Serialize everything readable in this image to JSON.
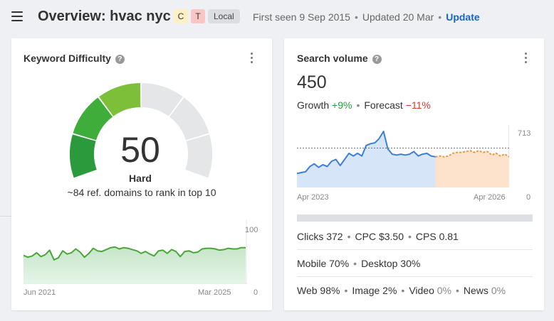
{
  "header": {
    "title": "Overview: hvac nyc",
    "badge_c": "C",
    "badge_t": "T",
    "badge_local": "Local",
    "first_seen": "First seen 9 Sep 2015",
    "updated": "Updated 20 Mar",
    "update_link": "Update"
  },
  "keyword_difficulty": {
    "title": "Keyword Difficulty",
    "value": "50",
    "label": "Hard",
    "subtitle": "~84 ref. domains to rank in top 10",
    "chart_y_max": "100",
    "chart_y_min": "0",
    "chart_x_start": "Jun 2021",
    "chart_x_end": "Mar 2025"
  },
  "search_volume": {
    "title": "Search volume",
    "value": "450",
    "growth_label": "Growth",
    "growth_value": "+9%",
    "forecast_label": "Forecast",
    "forecast_value": "−11%",
    "chart_y_max": "713",
    "chart_y_min": "0",
    "chart_x_start": "Apr 2023",
    "chart_x_end": "Apr 2026",
    "clicks": "Clicks 372",
    "cpc": "CPC $3.50",
    "cps": "CPS 0.81",
    "mobile": "Mobile 70%",
    "desktop": "Desktop 30%",
    "web": "Web 98%",
    "image": "Image 2%",
    "video_label": "Video",
    "video_value": "0%",
    "news_label": "News",
    "news_value": "0%"
  },
  "colors": {
    "accent": "#1566c2",
    "positive": "#2b9b3d",
    "negative": "#d93a2a",
    "history_line": "#3d7fd4",
    "forecast_line": "#ee9440"
  },
  "chart_data": [
    {
      "type": "area",
      "name": "Keyword difficulty history",
      "x_start": "Jun 2021",
      "x_end": "Mar 2025",
      "ylim": [
        0,
        100
      ],
      "values": [
        45,
        42,
        44,
        49,
        43,
        46,
        53,
        38,
        41,
        52,
        47,
        49,
        55,
        50,
        42,
        48,
        56,
        52,
        51,
        54,
        57,
        58,
        55,
        57,
        56,
        54,
        52,
        48,
        51,
        47,
        44,
        52,
        53,
        48,
        54,
        51,
        43,
        51,
        52,
        49,
        50,
        55,
        56,
        56,
        55,
        53,
        54,
        56,
        55,
        55,
        57,
        57
      ]
    },
    {
      "type": "line",
      "name": "Search volume",
      "x_start": "Apr 2023",
      "x_end": "Apr 2026",
      "ylim": [
        0,
        713
      ],
      "average": 450,
      "history": [
        160,
        170,
        180,
        240,
        270,
        230,
        260,
        240,
        300,
        320,
        250,
        320,
        390,
        360,
        390,
        360,
        480,
        500,
        510,
        560,
        640,
        440,
        380,
        370,
        380,
        370,
        380,
        410,
        360,
        380,
        390,
        360,
        350
      ],
      "forecast": [
        360,
        350,
        360,
        390,
        400,
        400,
        410,
        420,
        400,
        420,
        400,
        410,
        370,
        390,
        360,
        380,
        350
      ]
    }
  ]
}
